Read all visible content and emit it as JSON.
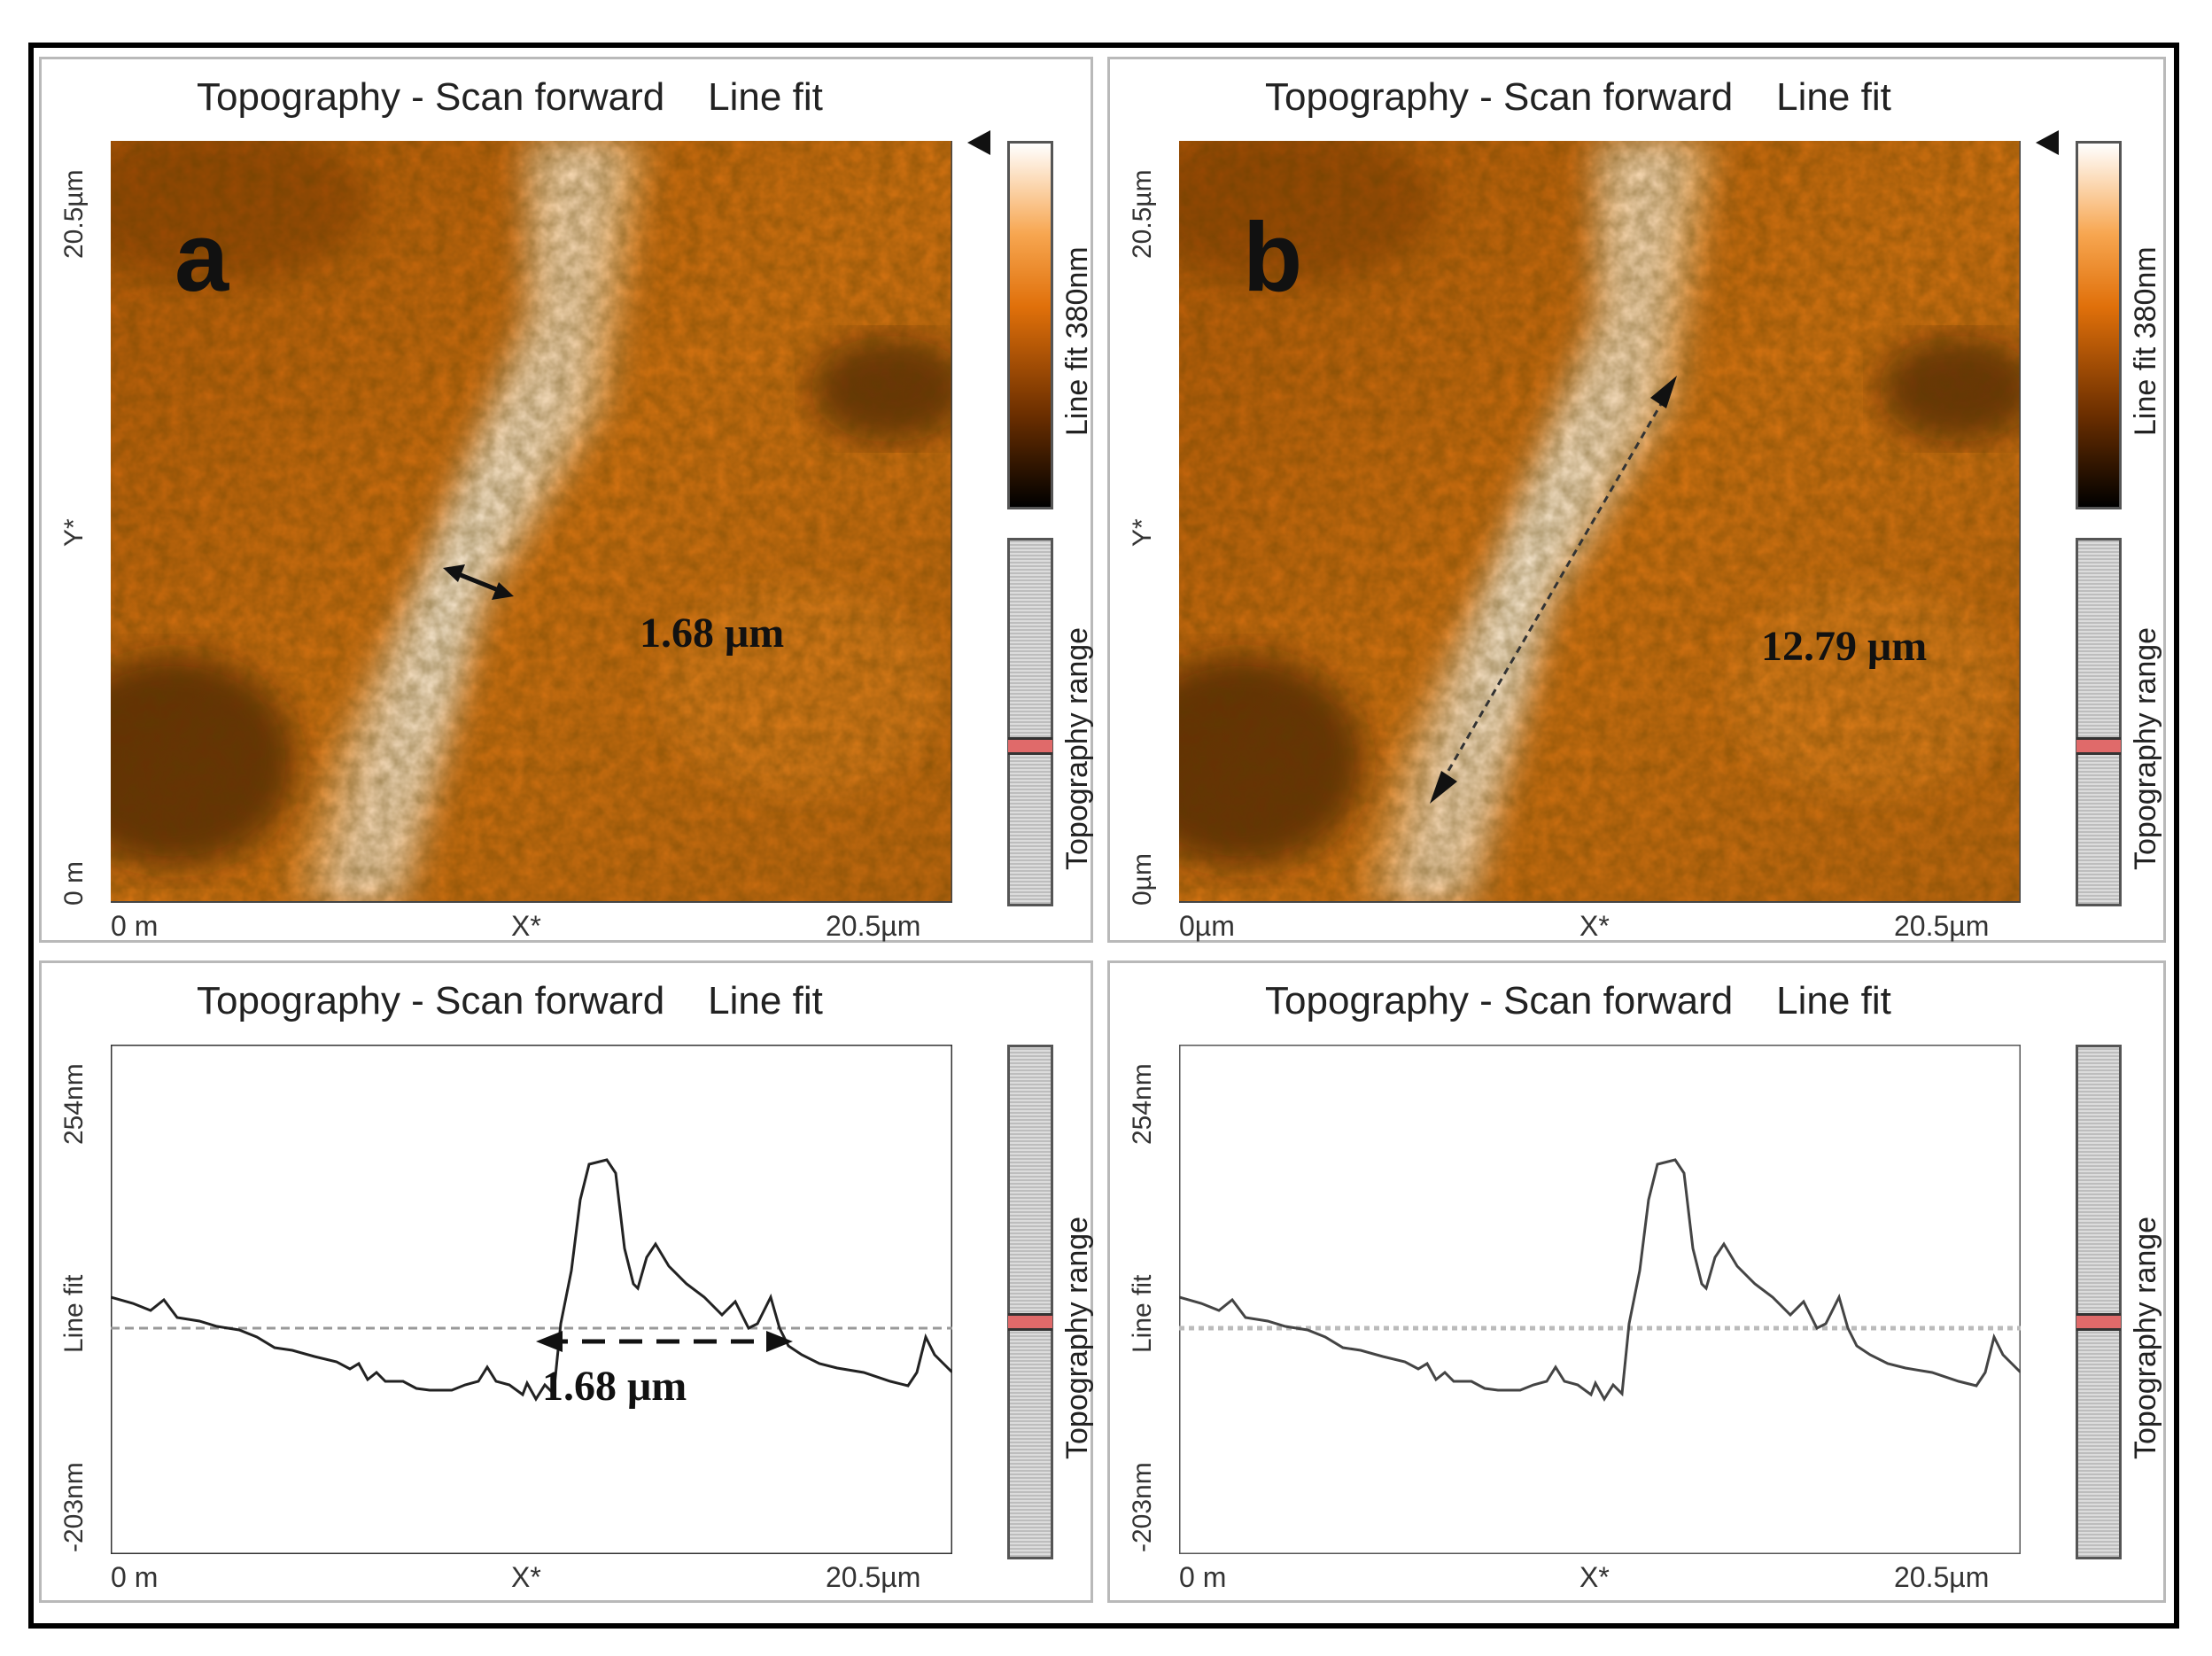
{
  "panels": {
    "a_image": {
      "title": "Topography - Scan forward    Line fit",
      "panel_letter": "a",
      "y_top": "20.5µm",
      "y_mid": "Y*",
      "y_bottom": "0 m",
      "x_left": "0 m",
      "x_mid": "X*",
      "x_right": "20.5µm",
      "colorbar_label": "Line fit 380nm",
      "range_label": "Topography range",
      "measurement": "1.68 μm"
    },
    "b_image": {
      "title": "Topography - Scan forward    Line fit",
      "panel_letter": "b",
      "y_top": "20.5µm",
      "y_mid": "Y*",
      "y_bottom": "0µm",
      "x_left": "0µm",
      "x_mid": "X*",
      "x_right": "20.5µm",
      "colorbar_label": "Line fit 380nm",
      "range_label": "Topography range",
      "measurement": "12.79 μm"
    },
    "a_profile": {
      "title": "Topography - Scan forward    Line fit",
      "y_top": "254nm",
      "y_mid": "Line fit",
      "y_bottom": "-203nm",
      "x_left": "0 m",
      "x_mid": "X*",
      "x_right": "20.5µm",
      "range_label": "Topography range",
      "measurement": "1.68 μm"
    },
    "b_profile": {
      "title": "Topography - Scan forward    Line fit",
      "y_top": "254nm",
      "y_mid": "Line fit",
      "y_bottom": "-203nm",
      "x_left": "0 m",
      "x_mid": "X*",
      "x_right": "20.5µm",
      "range_label": "Topography range"
    }
  },
  "colors": {
    "afm_dark": "#1a0a00",
    "afm_mid": "#d2690e",
    "afm_light": "#fff3e0",
    "frame": "#000000"
  }
}
